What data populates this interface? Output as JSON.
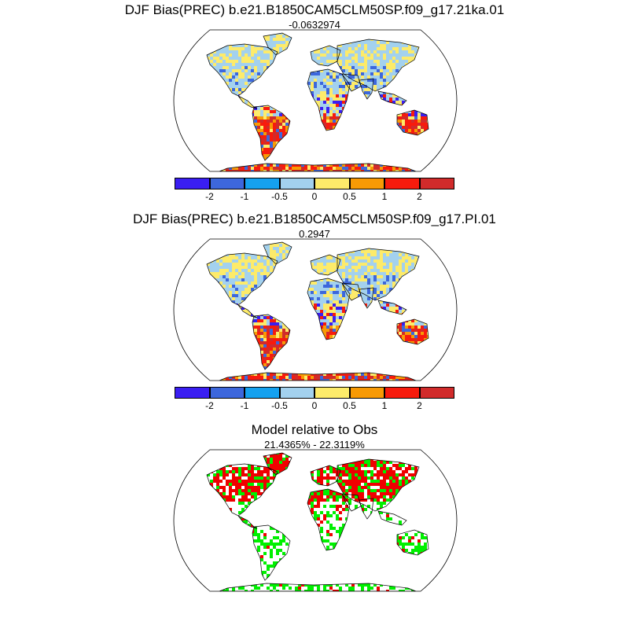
{
  "panels": [
    {
      "title": "DJF Bias(PREC) b.e21.B1850CAM5CLM50SP.f09_g17.21ka.01",
      "subtitle": "-0.0632974",
      "map_kind": "bias21ka"
    },
    {
      "title": "DJF Bias(PREC) b.e21.B1850CAM5CLM50SP.f09_g17.PI.01",
      "subtitle": "0.2947",
      "map_kind": "biasPI"
    },
    {
      "title": "Model relative to Obs",
      "subtitle": "21.4365% - 22.3119%",
      "map_kind": "relative"
    }
  ],
  "colorbar": {
    "colors": [
      "#3a1ef2",
      "#3d67dc",
      "#15a1ef",
      "#a3d1ee",
      "#fdeb6a",
      "#f89a05",
      "#f71b0d",
      "#d12b2b"
    ],
    "labels": [
      "-2",
      "-1",
      "-0.5",
      "0",
      "0.5",
      "1",
      "2"
    ]
  },
  "relative_colors": {
    "improved": "#00f000",
    "degraded": "#f00000"
  }
}
